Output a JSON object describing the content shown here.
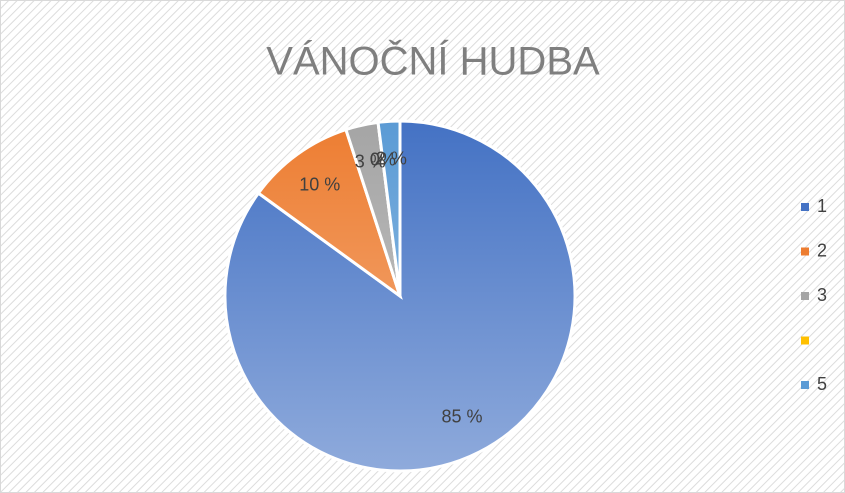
{
  "chart_data": {
    "type": "pie",
    "title": "VÁNOČNÍ HUDBA",
    "categories": [
      "1",
      "2",
      "3",
      null,
      "5"
    ],
    "values": [
      85,
      10,
      3,
      0,
      2
    ],
    "value_labels": [
      "85 %",
      "10 %",
      "3 %",
      "0%",
      "2 %"
    ],
    "colors": [
      "#4472c4",
      "#ed7d31",
      "#a5a5a5",
      "#ffc000",
      "#5b9bd5"
    ],
    "legend": "right"
  }
}
